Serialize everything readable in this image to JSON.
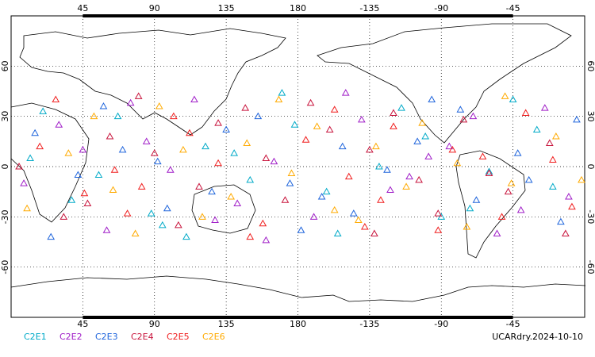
{
  "chart_data": {
    "type": "scatter",
    "title": "UCARdry.2024-10-10",
    "xlim": [
      0,
      360
    ],
    "ylim": [
      -90,
      90
    ],
    "xticks": [
      45,
      90,
      135,
      180,
      {
        "value": 225,
        "label": "-135"
      },
      {
        "value": 270,
        "label": "-90"
      },
      {
        "value": 315,
        "label": "-45"
      }
    ],
    "yticks": [
      60,
      30,
      0,
      -30,
      -60
    ],
    "grid": true,
    "series": [
      {
        "name": "C2E1",
        "color": "#00aac8",
        "x": [
          12,
          38,
          67,
          95,
          122,
          150,
          178,
          205,
          231,
          260,
          288,
          315,
          340,
          20,
          55,
          88,
          140,
          198,
          245,
          300,
          330,
          110,
          170,
          270
        ],
        "values": [
          5,
          -20,
          30,
          -35,
          12,
          -8,
          25,
          -40,
          0,
          18,
          -25,
          40,
          -12,
          33,
          -5,
          -28,
          8,
          -15,
          35,
          -3,
          22,
          -42,
          44,
          -30
        ]
      },
      {
        "name": "C2E2",
        "color": "#a01ec8",
        "x": [
          8,
          30,
          60,
          85,
          115,
          142,
          165,
          190,
          220,
          250,
          275,
          305,
          335,
          350,
          45,
          100,
          128,
          210,
          238,
          290,
          320,
          75,
          160,
          262
        ],
        "values": [
          -10,
          25,
          -38,
          15,
          40,
          -22,
          3,
          -30,
          28,
          -6,
          12,
          -40,
          35,
          -18,
          10,
          -2,
          -32,
          44,
          -14,
          30,
          -26,
          38,
          -44,
          6
        ]
      },
      {
        "name": "C2E3",
        "color": "#1e64dc",
        "x": [
          15,
          42,
          70,
          98,
          126,
          155,
          182,
          208,
          236,
          264,
          292,
          318,
          345,
          25,
          58,
          92,
          135,
          175,
          215,
          255,
          282,
          325,
          355,
          195
        ],
        "values": [
          20,
          -5,
          10,
          -25,
          -15,
          30,
          -38,
          12,
          -2,
          40,
          -20,
          8,
          -33,
          -42,
          36,
          3,
          22,
          -10,
          -28,
          15,
          34,
          -8,
          28,
          -18
        ]
      },
      {
        "name": "C2E4",
        "color": "#c8143c",
        "x": [
          5,
          33,
          62,
          90,
          118,
          147,
          172,
          200,
          228,
          256,
          284,
          312,
          338,
          48,
          80,
          105,
          160,
          188,
          225,
          268,
          300,
          348,
          130,
          240
        ],
        "values": [
          0,
          -30,
          18,
          8,
          -12,
          35,
          -20,
          22,
          -40,
          -8,
          28,
          -15,
          14,
          -22,
          42,
          -35,
          5,
          38,
          10,
          -28,
          -4,
          -40,
          26,
          32
        ]
      },
      {
        "name": "C2E5",
        "color": "#f01e1e",
        "x": [
          18,
          46,
          73,
          102,
          130,
          158,
          185,
          212,
          240,
          268,
          296,
          323,
          352,
          28,
          65,
          112,
          150,
          203,
          232,
          277,
          308,
          340,
          82,
          222
        ],
        "values": [
          12,
          -16,
          -28,
          30,
          2,
          -34,
          16,
          -6,
          24,
          -38,
          6,
          32,
          -24,
          40,
          -2,
          20,
          -42,
          34,
          -20,
          10,
          -30,
          4,
          -12,
          -36
        ]
      },
      {
        "name": "C2E6",
        "color": "#ffaa00",
        "x": [
          10,
          36,
          64,
          93,
          120,
          148,
          176,
          203,
          229,
          258,
          286,
          314,
          342,
          52,
          78,
          108,
          138,
          168,
          218,
          248,
          280,
          310,
          358,
          192
        ],
        "values": [
          -25,
          8,
          -14,
          36,
          -30,
          14,
          -4,
          -26,
          12,
          26,
          -36,
          -10,
          18,
          30,
          -40,
          10,
          -18,
          40,
          -32,
          -12,
          2,
          42,
          -8,
          24
        ]
      }
    ]
  }
}
